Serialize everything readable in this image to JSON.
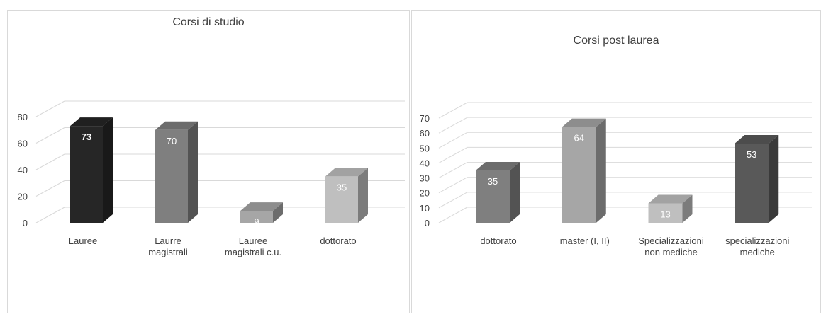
{
  "chart_data": [
    {
      "type": "bar",
      "title": "Corsi di studio",
      "categories": [
        "Lauree",
        "Laurre magistrali",
        "Lauree magistrali c.u.",
        "dottorato"
      ],
      "category_lines": [
        [
          "Lauree"
        ],
        [
          "Laurre",
          "magistrali"
        ],
        [
          "Lauree",
          "magistrali c.u."
        ],
        [
          "dottorato"
        ]
      ],
      "values": [
        73,
        70,
        9,
        35
      ],
      "colors": [
        "#262626",
        "#7f7f7f",
        "#a6a6a6",
        "#bfbfbf"
      ],
      "yticks": [
        0,
        20,
        40,
        60,
        80
      ],
      "ylim": [
        0,
        80
      ],
      "grid": true,
      "style": "3d-column"
    },
    {
      "type": "bar",
      "title": "Corsi post laurea",
      "categories": [
        "dottorato",
        "master (I, II)",
        "Specializzazioni non mediche",
        "specializzazioni mediche"
      ],
      "category_lines": [
        [
          "dottorato"
        ],
        [
          "master (I, II)"
        ],
        [
          "Specializzazioni",
          "non mediche"
        ],
        [
          "specializzazioni",
          "mediche"
        ]
      ],
      "values": [
        35,
        64,
        13,
        53
      ],
      "colors": [
        "#7f7f7f",
        "#a6a6a6",
        "#bfbfbf",
        "#595959"
      ],
      "yticks": [
        0,
        10,
        20,
        30,
        40,
        50,
        60,
        70
      ],
      "ylim": [
        0,
        70
      ],
      "grid": true,
      "style": "3d-column"
    }
  ]
}
